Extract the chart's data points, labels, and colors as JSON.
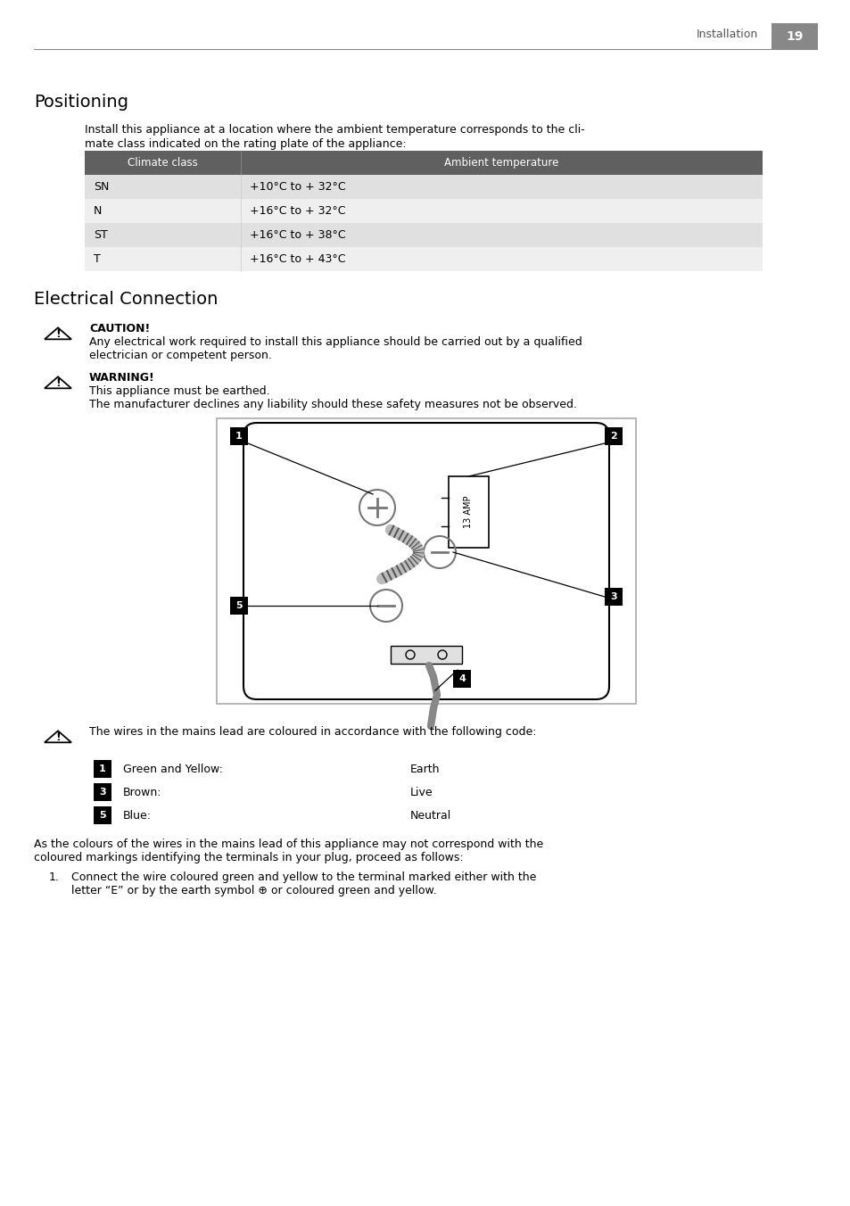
{
  "page_title": "Installation",
  "page_number": "19",
  "section1_title": "Positioning",
  "section1_body_line1": "Install this appliance at a location where the ambient temperature corresponds to the cli-",
  "section1_body_line2": "mate class indicated on the rating plate of the appliance:",
  "table_header": [
    "Climate class",
    "Ambient temperature"
  ],
  "table_rows": [
    [
      "SN",
      "+10°C to + 32°C"
    ],
    [
      "N",
      "+16°C to + 32°C"
    ],
    [
      "ST",
      "+16°C to + 38°C"
    ],
    [
      "T",
      "+16°C to + 43°C"
    ]
  ],
  "table_header_bg": "#606060",
  "table_row_bg_odd": "#e0e0e0",
  "table_row_bg_even": "#efefef",
  "section2_title": "Electrical Connection",
  "caution_label": "CAUTION!",
  "caution_line1": "Any electrical work required to install this appliance should be carried out by a qualified",
  "caution_line2": "electrician or competent person.",
  "warning_label": "WARNING!",
  "warning_line1": "This appliance must be earthed.",
  "warning_line2": "The manufacturer declines any liability should these safety measures not be observed.",
  "warning2_text": "The wires in the mains lead are coloured in accordance with the following code:",
  "wire_items": [
    {
      "num": "1",
      "color_label": "Green and Yellow:",
      "function": "Earth"
    },
    {
      "num": "3",
      "color_label": "Brown:",
      "function": "Live"
    },
    {
      "num": "5",
      "color_label": "Blue:",
      "function": "Neutral"
    }
  ],
  "final_line1": "As the colours of the wires in the mains lead of this appliance may not correspond with the",
  "final_line2": "coloured markings identifying the terminals in your plug, proceed as follows:",
  "list_item1_line1": "Connect the wire coloured green and yellow to the terminal marked either with the",
  "list_item1_line2": "letter “E” or by the earth symbol ⊕ or coloured green and yellow.",
  "bg_color": "#ffffff",
  "text_color": "#000000"
}
